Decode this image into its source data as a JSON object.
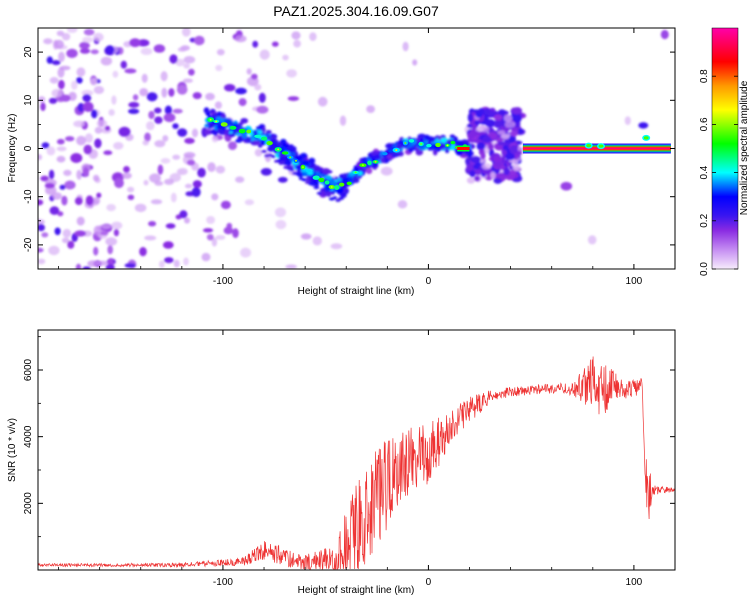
{
  "title": "PAZ1.2025.304.16.09.G07",
  "chart_data": [
    {
      "type": "heatmap",
      "name": "spectrogram",
      "xlabel": "Height of straight line (km)",
      "ylabel": "Frequency (Hz)",
      "xlim": [
        -190,
        120
      ],
      "ylim": [
        -25,
        25
      ],
      "xticks": [
        -100,
        0,
        100
      ],
      "xtick_labels": [
        "-100",
        "0",
        "100"
      ],
      "yticks": [
        -20,
        -10,
        0,
        10,
        20
      ],
      "ytick_labels": [
        "-20",
        "-10",
        "0",
        "10",
        "20"
      ],
      "colorbar": {
        "label": "Normalized spectral amplitude",
        "range": [
          0,
          1
        ],
        "ticks": [
          0.0,
          0.2,
          0.4,
          0.6,
          0.8
        ],
        "tick_labels": [
          "0.0",
          "0.2",
          "0.4",
          "0.6",
          "0.8"
        ],
        "colors": [
          "#f2e4fb",
          "#9b30ff",
          "#0000ff",
          "#00ffff",
          "#00ff00",
          "#ffff00",
          "#ff8000",
          "#ff0000",
          "#ff00aa"
        ]
      },
      "ridge": {
        "x": [
          -108,
          -100,
          -90,
          -80,
          -70,
          -60,
          -50,
          -45,
          -40,
          -35,
          -30,
          -20,
          -10,
          0,
          10,
          15,
          20
        ],
        "y": [
          6,
          5,
          3.5,
          2,
          -1,
          -4,
          -7,
          -8,
          -7,
          -5,
          -3,
          -1,
          1,
          1,
          1,
          0.5,
          0
        ]
      },
      "tone": {
        "x": [
          46,
          118
        ],
        "y": 0
      },
      "noise_zone": {
        "x": [
          20,
          45
        ],
        "y": [
          -7,
          8
        ]
      }
    },
    {
      "type": "line",
      "name": "snr",
      "xlabel": "Height of straight line (km)",
      "ylabel": "SNR (10 * v/v)",
      "xlim": [
        -190,
        120
      ],
      "ylim": [
        0,
        7200
      ],
      "xticks": [
        -100,
        0,
        100
      ],
      "xtick_labels": [
        "-100",
        "0",
        "100"
      ],
      "yticks": [
        2000,
        4000,
        6000
      ],
      "ytick_labels": [
        "2000",
        "4000",
        "6000"
      ],
      "color": "#ee3333",
      "envelope": {
        "x": [
          -190,
          -120,
          -90,
          -80,
          -60,
          -45,
          -38,
          -30,
          -20,
          -10,
          0,
          10,
          20,
          30,
          40,
          50,
          60,
          70,
          80,
          85,
          90,
          95,
          100,
          104,
          105,
          106,
          108,
          110,
          120
        ],
        "y": [
          150,
          150,
          250,
          600,
          200,
          300,
          900,
          1700,
          2600,
          3100,
          3500,
          4200,
          4800,
          5200,
          5350,
          5400,
          5450,
          5450,
          5600,
          5400,
          5500,
          5400,
          5450,
          5500,
          3500,
          2500,
          2400,
          2400,
          2400
        ],
        "noise_amplitude": [
          40,
          60,
          120,
          300,
          250,
          500,
          1300,
          1500,
          1500,
          1200,
          900,
          600,
          400,
          200,
          150,
          150,
          150,
          200,
          900,
          800,
          500,
          300,
          250,
          250,
          500,
          900,
          600,
          150,
          60
        ]
      }
    }
  ]
}
